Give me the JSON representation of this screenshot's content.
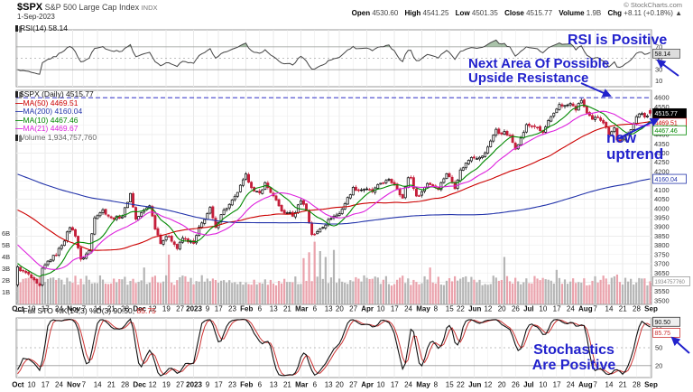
{
  "header": {
    "symbol": "$SPX",
    "name": "S&P 500 Large Cap Index",
    "exchange": "INDX",
    "date": "1-Sep-2023",
    "credit": "© StockCharts.com",
    "quote": [
      {
        "label": "Open",
        "value": "4530.60"
      },
      {
        "label": "High",
        "value": "4541.25"
      },
      {
        "label": "Low",
        "value": "4501.35"
      },
      {
        "label": "Close",
        "value": "4515.77"
      },
      {
        "label": "Volume",
        "value": "1.9B"
      },
      {
        "label": "Chg",
        "value": "+8.11 (+0.18%) ▲"
      }
    ]
  },
  "legends": {
    "rsi": "RSI(14) 58.14",
    "price_main": "$SPX (Daily) 4515.77",
    "ma": [
      {
        "label": "MA(50) 4469.51",
        "color": "#cc0000"
      },
      {
        "label": "MA(200) 4160.04",
        "color": "#2233aa"
      },
      {
        "label": "MA(10) 4467.46",
        "color": "#008800"
      },
      {
        "label": "MA(21) 4469.67",
        "color": "#dd22dd"
      }
    ],
    "volume": "Volume 1,934,757,760",
    "stoch_black": "Full STO %K(14,3) %D(3) 90.50,",
    "stoch_red": "85.75"
  },
  "annotations": {
    "rsi": "RSI is Positive",
    "resistance_line1": "Next Area Of Possible",
    "resistance_line2": "Upside Resistance",
    "uptrend": "new uptrend",
    "stoch_line1": "Stochastics",
    "stoch_line2": "Are Positive",
    "color": "#2222cc"
  },
  "axis_callouts": {
    "rsi_last": "58.14",
    "price_last": "4515.77",
    "ma50_last": "4469.51",
    "ma10_last": "4467.46",
    "ma200_last": "4160.04",
    "volume_last": "1934757760",
    "stoch_k_last": "90.50",
    "stoch_d_last": "85.75"
  },
  "chart_data": [
    {
      "type": "line",
      "panel": "rsi",
      "name": "RSI(14)",
      "period": 14,
      "ylim": [
        0,
        100
      ],
      "ticks": [
        70,
        50,
        30,
        10
      ],
      "ref_solid": [
        70,
        30
      ],
      "ref_dashed": [
        50
      ],
      "last": 58.14,
      "line_color": "#444444",
      "overbought_fill": "#558855"
    },
    {
      "type": "candlestick",
      "panel": "price",
      "ylim": [
        3480,
        4640
      ],
      "tick_step": 50,
      "tick_min": 3500,
      "tick_max": 4600,
      "resistance_level": 4600,
      "resistance_color": "#4444cc",
      "n": 231,
      "up_color": "#ffffff",
      "up_border": "#000000",
      "down_color": "#c41e3a",
      "close_anchors": [
        [
          0,
          3678
        ],
        [
          4,
          3640
        ],
        [
          7,
          3588
        ],
        [
          8,
          3577
        ],
        [
          9,
          3669
        ],
        [
          11,
          3712
        ],
        [
          14,
          3752
        ],
        [
          17,
          3830
        ],
        [
          19,
          3901
        ],
        [
          21,
          3856
        ],
        [
          23,
          3719
        ],
        [
          26,
          3770
        ],
        [
          28,
          3956
        ],
        [
          31,
          3991
        ],
        [
          34,
          3945
        ],
        [
          38,
          3957
        ],
        [
          41,
          4080
        ],
        [
          43,
          3941
        ],
        [
          46,
          3990
        ],
        [
          48,
          4019
        ],
        [
          50,
          3895
        ],
        [
          52,
          3817
        ],
        [
          55,
          3852
        ],
        [
          58,
          3783
        ],
        [
          60,
          3839
        ],
        [
          62,
          3824
        ],
        [
          64,
          3808
        ],
        [
          66,
          3892
        ],
        [
          70,
          3999
        ],
        [
          72,
          3891
        ],
        [
          74,
          3972
        ],
        [
          77,
          4019
        ],
        [
          79,
          4060
        ],
        [
          81,
          4119
        ],
        [
          83,
          4179
        ],
        [
          86,
          4090
        ],
        [
          88,
          4081
        ],
        [
          90,
          4136
        ],
        [
          92,
          4090
        ],
        [
          95,
          4012
        ],
        [
          97,
          3970
        ],
        [
          99,
          3982
        ],
        [
          100,
          3951
        ],
        [
          103,
          4048
        ],
        [
          105,
          3992
        ],
        [
          107,
          3861
        ],
        [
          108,
          3855
        ],
        [
          110,
          3892
        ],
        [
          112,
          3916
        ],
        [
          114,
          3951
        ],
        [
          117,
          3971
        ],
        [
          119,
          4027
        ],
        [
          122,
          4109
        ],
        [
          124,
          4100
        ],
        [
          126,
          4105
        ],
        [
          129,
          4091
        ],
        [
          132,
          4137
        ],
        [
          135,
          4151
        ],
        [
          137,
          4133
        ],
        [
          140,
          4055
        ],
        [
          142,
          4169
        ],
        [
          143,
          4167
        ],
        [
          145,
          4061
        ],
        [
          147,
          4090
        ],
        [
          149,
          4138
        ],
        [
          151,
          4124
        ],
        [
          153,
          4110
        ],
        [
          156,
          4191
        ],
        [
          158,
          4145
        ],
        [
          159,
          4115
        ],
        [
          161,
          4205
        ],
        [
          165,
          4282
        ],
        [
          168,
          4273
        ],
        [
          170,
          4298
        ],
        [
          172,
          4369
        ],
        [
          174,
          4425
        ],
        [
          175,
          4409
        ],
        [
          177,
          4410
        ],
        [
          179,
          4388
        ],
        [
          181,
          4328
        ],
        [
          183,
          4378
        ],
        [
          185,
          4450
        ],
        [
          188,
          4446
        ],
        [
          191,
          4409
        ],
        [
          193,
          4472
        ],
        [
          195,
          4510
        ],
        [
          197,
          4565
        ],
        [
          199,
          4554
        ],
        [
          201,
          4567
        ],
        [
          203,
          4537
        ],
        [
          205,
          4588
        ],
        [
          207,
          4513
        ],
        [
          209,
          4478
        ],
        [
          211,
          4499
        ],
        [
          213,
          4468
        ],
        [
          215,
          4404
        ],
        [
          217,
          4438
        ],
        [
          218,
          4370
        ],
        [
          220,
          4370
        ],
        [
          222,
          4405
        ],
        [
          223,
          4433
        ],
        [
          225,
          4497
        ],
        [
          227,
          4515
        ],
        [
          228,
          4501
        ],
        [
          229,
          4507
        ],
        [
          230,
          4515.77
        ]
      ],
      "prehistory_anchors": [
        [
          -215,
          4690
        ],
        [
          -195,
          4780
        ],
        [
          -180,
          4670
        ],
        [
          -170,
          4400
        ],
        [
          -160,
          4500
        ],
        [
          -150,
          4350
        ],
        [
          -140,
          4600
        ],
        [
          -130,
          4460
        ],
        [
          -120,
          4170
        ],
        [
          -110,
          4130
        ],
        [
          -100,
          3930
        ],
        [
          -92,
          4110
        ],
        [
          -85,
          3960
        ],
        [
          -75,
          3680
        ],
        [
          -68,
          3760
        ],
        [
          -60,
          3820
        ],
        [
          -52,
          3960
        ],
        [
          -44,
          4120
        ],
        [
          -36,
          4280
        ],
        [
          -30,
          4140
        ],
        [
          -22,
          3990
        ],
        [
          -15,
          3910
        ],
        [
          -8,
          3760
        ],
        [
          -3,
          3680
        ],
        [
          -1,
          3590
        ]
      ],
      "last_bar": {
        "open": 4530.6,
        "high": 4541.25,
        "low": 4501.35,
        "close": 4515.77
      },
      "ma": [
        {
          "period": 50,
          "color": "#cc0000",
          "last": 4469.51
        },
        {
          "period": 200,
          "color": "#2233aa",
          "last": 4160.04
        },
        {
          "period": 10,
          "color": "#008800",
          "last": 4467.46
        },
        {
          "period": 21,
          "color": "#dd22dd",
          "last": 4469.67
        }
      ],
      "volume": {
        "axis_ticks": [
          "6B",
          "5B",
          "4B",
          "3B",
          "2B",
          "1B"
        ],
        "base_billion": 1.55,
        "spikes": [
          [
            46,
            3.1
          ],
          [
            55,
            4.2
          ],
          [
            104,
            3.9
          ],
          [
            106,
            4.4
          ],
          [
            108,
            5.3
          ],
          [
            110,
            4.5
          ],
          [
            112,
            4.0
          ],
          [
            115,
            4.6
          ],
          [
            150,
            3.1
          ],
          [
            177,
            4.0
          ],
          [
            196,
            2.9
          ],
          [
            218,
            2.5
          ],
          [
            230,
            1.93
          ]
        ],
        "last_billion": 1.93,
        "up_color": "#b5b5b5",
        "down_color": "#eaa2ac"
      },
      "xlabels": [
        "Oct",
        "10",
        "17",
        "24",
        "Nov",
        "7",
        "14",
        "21",
        "28",
        "Dec",
        "12",
        "19",
        "27",
        "2023",
        "9",
        "17",
        "23",
        "Feb",
        "6",
        "13",
        "21",
        "Mar",
        "6",
        "13",
        "20",
        "27",
        "Apr",
        "10",
        "17",
        "24",
        "May",
        "8",
        "15",
        "22",
        "Jun",
        "12",
        "20",
        "26",
        "Jul",
        "10",
        "17",
        "24",
        "Aug",
        "7",
        "14",
        "21",
        "28",
        "Sep"
      ]
    },
    {
      "type": "line",
      "panel": "stoch",
      "name": "Full STO %K(14,3) %D(3)",
      "k_period": 14,
      "k_smooth": 3,
      "d_period": 3,
      "k_last": 90.5,
      "d_last": 85.75,
      "ylim": [
        0,
        100
      ],
      "ticks": [
        80,
        50,
        20
      ],
      "ref_solid": [
        80,
        20
      ],
      "ref_dashed": [
        50
      ],
      "k_color": "#111111",
      "d_color": "#cc3333"
    }
  ]
}
